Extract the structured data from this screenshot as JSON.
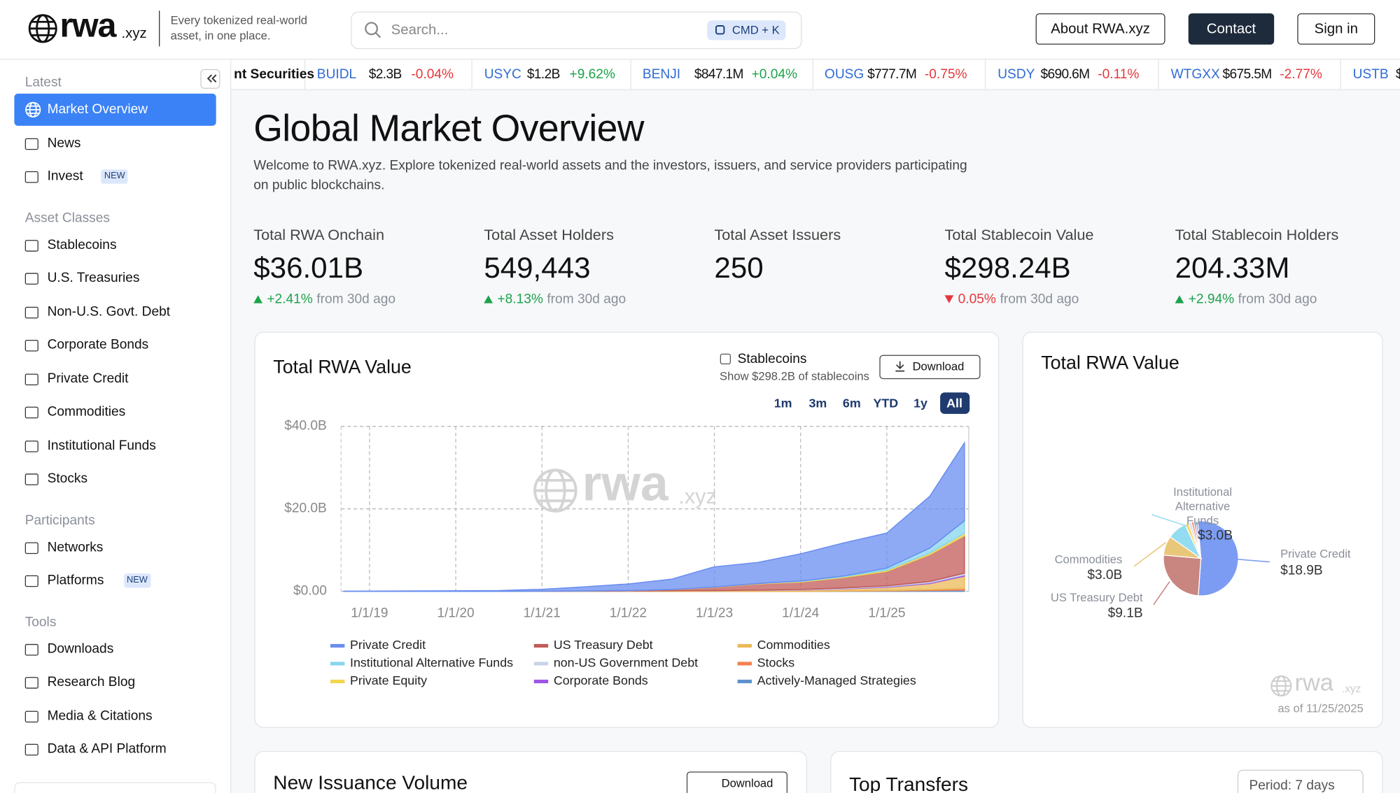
{
  "header": {
    "logo": "rwa",
    "logo_suffix": ".xyz",
    "tagline": "Every tokenized real-world asset, in one place.",
    "search_placeholder": "Search...",
    "search_shortcut": "CMD + K",
    "buttons": [
      "About RWA.xyz",
      "Contact",
      "Sign in"
    ]
  },
  "ticker": [
    {
      "name": "nt Securities"
    },
    {
      "symbol": "BUIDL",
      "value": "$2.3B",
      "change": "-0.04%"
    },
    {
      "symbol": "USYC",
      "value": "$1.2B",
      "change": "+9.62%"
    },
    {
      "symbol": "BENJI",
      "value": "$847.1M",
      "change": "+0.04%"
    },
    {
      "symbol": "OUSG",
      "value": "$777.7M",
      "change": "-0.75%"
    },
    {
      "symbol": "USDY",
      "value": "$690.6M",
      "change": "-0.11%"
    },
    {
      "symbol": "WTGXX",
      "value": "$675.5M",
      "change": "-2.77%"
    },
    {
      "symbol": "USTB",
      "value": "$"
    }
  ],
  "sidebar": {
    "sections": [
      {
        "title": "Latest",
        "items": [
          {
            "label": "Market Overview",
            "active": true
          },
          {
            "label": "News"
          },
          {
            "label": "Invest",
            "badge": "NEW"
          }
        ]
      },
      {
        "title": "Asset Classes",
        "items": [
          {
            "label": "Stablecoins"
          },
          {
            "label": "U.S. Treasuries"
          },
          {
            "label": "Non-U.S. Govt. Debt"
          },
          {
            "label": "Corporate Bonds"
          },
          {
            "label": "Private Credit"
          },
          {
            "label": "Commodities"
          },
          {
            "label": "Institutional Funds"
          },
          {
            "label": "Stocks"
          }
        ]
      },
      {
        "title": "Participants",
        "items": [
          {
            "label": "Networks"
          },
          {
            "label": "Platforms",
            "badge": "NEW"
          }
        ]
      },
      {
        "title": "Tools",
        "items": [
          {
            "label": "Downloads"
          },
          {
            "label": "Research Blog"
          },
          {
            "label": "Media & Citations"
          },
          {
            "label": "Data & API Platform"
          }
        ]
      }
    ]
  },
  "page": {
    "title": "Global Market Overview",
    "intro": "Welcome to RWA.xyz. Explore tokenized real-world assets and the investors, issuers, and service providers participating on public blockchains.",
    "stats": [
      {
        "label": "Total RWA Onchain",
        "value": "$36.01B",
        "change": "+2.41%",
        "direction": "up",
        "note": "from 30d ago"
      },
      {
        "label": "Total Asset Holders",
        "value": "549,443",
        "change": "+8.13%",
        "direction": "up",
        "note": "from 30d ago"
      },
      {
        "label": "Total Asset Issuers",
        "value": "250"
      },
      {
        "label": "Total Stablecoin Value",
        "value": "$298.24B",
        "change": "0.05%",
        "direction": "down",
        "note": "from 30d ago"
      },
      {
        "label": "Total Stablecoin Holders",
        "value": "204.33M",
        "change": "+2.94%",
        "direction": "up",
        "note": "from 30d ago"
      }
    ]
  },
  "area_controls": {
    "checkbox": "Stablecoins",
    "checkbox_note": "Show $298.2B of stablecoins",
    "download": "Download",
    "ranges": [
      "1m",
      "3m",
      "6m",
      "YTD",
      "1y",
      "All"
    ],
    "active_range": "All"
  },
  "chart_data": [
    {
      "type": "stacked-area",
      "title": "Total RWA Value",
      "x": [
        2018.7,
        2019.5,
        2020.5,
        2021.0,
        2021.5,
        2022.0,
        2022.5,
        2023.0,
        2023.5,
        2024.0,
        2024.5,
        2025.0,
        2025.5,
        2025.9
      ],
      "xlim": [
        2018.67,
        2025.95
      ],
      "xticks": [
        {
          "value": 2019,
          "label": "1/1/19"
        },
        {
          "value": 2020,
          "label": "1/1/20"
        },
        {
          "value": 2021,
          "label": "1/1/21"
        },
        {
          "value": 2022,
          "label": "1/1/22"
        },
        {
          "value": 2023,
          "label": "1/1/23"
        },
        {
          "value": 2024,
          "label": "1/1/24"
        },
        {
          "value": 2025,
          "label": "1/1/25"
        }
      ],
      "ylim": [
        0,
        40
      ],
      "yticks": [
        {
          "value": 0,
          "label": "$0.00"
        },
        {
          "value": 20,
          "label": "$20.0B"
        },
        {
          "value": 40,
          "label": "$40.0B"
        }
      ],
      "grid": true,
      "series": [
        {
          "name": "Private Credit",
          "color": "#6a8df0",
          "values": [
            0.05,
            0.1,
            0.2,
            0.46,
            1.0,
            1.6,
            2.5,
            4.9,
            5.1,
            6.6,
            8.0,
            8.5,
            12.6,
            18.9
          ]
        },
        {
          "name": "Institutional Alternative Funds",
          "color": "#86d6ee",
          "values": [
            0,
            0,
            0,
            0,
            0,
            0,
            0,
            0,
            0,
            0.1,
            0.2,
            0.5,
            1.2,
            3.0
          ]
        },
        {
          "name": "Private Equity",
          "color": "#f3d54e",
          "values": [
            0,
            0,
            0,
            0,
            0,
            0,
            0,
            0.05,
            0.1,
            0.15,
            0.2,
            0.3,
            0.4,
            0.6
          ]
        },
        {
          "name": "US Treasury Debt",
          "color": "#c25b57",
          "values": [
            0,
            0,
            0,
            0.02,
            0.05,
            0.1,
            0.3,
            0.8,
            1.5,
            1.8,
            2.5,
            3.5,
            6.5,
            9.1
          ]
        },
        {
          "name": "non-US Government Debt",
          "color": "#c9d4ea",
          "values": [
            0,
            0,
            0,
            0,
            0,
            0,
            0,
            0,
            0.05,
            0.1,
            0.15,
            0.2,
            0.3,
            0.4
          ]
        },
        {
          "name": "Corporate Bonds",
          "color": "#9d55e6",
          "values": [
            0,
            0,
            0,
            0,
            0,
            0,
            0,
            0,
            0,
            0.05,
            0.1,
            0.15,
            0.2,
            0.3
          ]
        },
        {
          "name": "Commodities",
          "color": "#ebb955",
          "values": [
            0,
            0,
            0,
            0.02,
            0.05,
            0.1,
            0.15,
            0.2,
            0.25,
            0.3,
            0.5,
            0.8,
            1.5,
            3.0
          ]
        },
        {
          "name": "Stocks",
          "color": "#f2804e",
          "values": [
            0,
            0,
            0,
            0,
            0,
            0,
            0,
            0,
            0,
            0,
            0.05,
            0.1,
            0.2,
            0.4
          ]
        },
        {
          "name": "Actively-Managed Strategies",
          "color": "#5e92cc",
          "values": [
            0,
            0,
            0,
            0,
            0,
            0,
            0,
            0,
            0,
            0,
            0.05,
            0.1,
            0.2,
            0.3
          ]
        }
      ]
    },
    {
      "type": "pie",
      "title": "Total RWA Value",
      "categories": [
        "Private Credit",
        "US Treasury Debt",
        "Commodities",
        "Institutional Alternative Funds",
        null,
        null,
        null,
        null,
        null
      ],
      "values": [
        18.9,
        9.1,
        3.0,
        3.0,
        0.6,
        0.4,
        0.4,
        0.3,
        0.3
      ],
      "value_labels": [
        "$18.9B",
        "$9.1B",
        "$3.0B",
        "$3.0B",
        null,
        null,
        null,
        null,
        null
      ],
      "colors": [
        "#7b9cf2",
        "#c98580",
        "#e9c77a",
        "#94dcf2",
        "#f6dd73",
        "#d3dbee",
        "#f59a72",
        "#a86be6",
        "#6f9ed4"
      ],
      "note": "as of 11/25/2025"
    }
  ],
  "bottom": [
    {
      "title": "New Issuance Volume",
      "button": "Download"
    },
    {
      "title": "Top Transfers",
      "button": "Period: 7 days"
    }
  ]
}
